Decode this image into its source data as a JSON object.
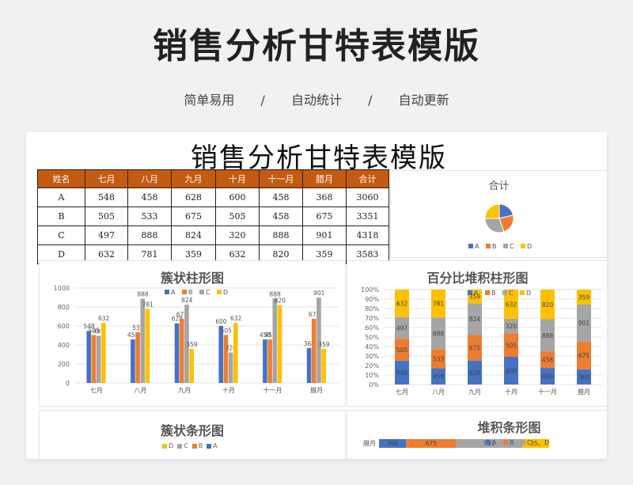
{
  "header": {
    "title": "销售分析甘特表模版",
    "tags": [
      "简单易用",
      "自动统计",
      "自动更新"
    ],
    "separator": "/"
  },
  "sheet": {
    "title": "销售分析甘特表模版",
    "columns": [
      "姓名",
      "七月",
      "八月",
      "九月",
      "十月",
      "十一月",
      "腊月",
      "合计"
    ],
    "rows": [
      [
        "A",
        "548",
        "458",
        "628",
        "600",
        "458",
        "368",
        "3060"
      ],
      [
        "B",
        "505",
        "533",
        "675",
        "505",
        "458",
        "675",
        "3351"
      ],
      [
        "C",
        "497",
        "888",
        "824",
        "320",
        "888",
        "901",
        "4318"
      ],
      [
        "D",
        "632",
        "781",
        "359",
        "632",
        "820",
        "359",
        "3583"
      ]
    ]
  },
  "colors": {
    "header_bg": "#c55a11",
    "A": "#4472c4",
    "B": "#ed7d31",
    "C": "#a5a5a5",
    "D": "#ffc000"
  },
  "chart_data": [
    {
      "type": "pie",
      "title": "合计",
      "categories": [
        "A",
        "B",
        "C",
        "D"
      ],
      "values": [
        3060,
        3351,
        4318,
        3583
      ],
      "legend": "bottom"
    },
    {
      "type": "bar",
      "title": "簇状柱形图",
      "categories": [
        "七月",
        "八月",
        "九月",
        "十月",
        "十一月",
        "腊月"
      ],
      "series": [
        {
          "name": "A",
          "values": [
            548,
            458,
            628,
            600,
            458,
            368
          ]
        },
        {
          "name": "B",
          "values": [
            505,
            533,
            675,
            505,
            458,
            675
          ]
        },
        {
          "name": "C",
          "values": [
            497,
            888,
            824,
            320,
            888,
            901
          ]
        },
        {
          "name": "D",
          "values": [
            632,
            781,
            359,
            632,
            820,
            359
          ]
        }
      ],
      "ylim": [
        0,
        1000
      ],
      "yticks": [
        "0",
        "200",
        "400",
        "600",
        "800",
        "1000"
      ],
      "legend": "top",
      "grid": true
    },
    {
      "type": "bar",
      "title": "百分比堆积柱形图",
      "stacked": "percent",
      "categories": [
        "七月",
        "八月",
        "九月",
        "十月",
        "十一月",
        "腊月"
      ],
      "series": [
        {
          "name": "A",
          "values": [
            548,
            458,
            628,
            600,
            458,
            368
          ]
        },
        {
          "name": "B",
          "values": [
            505,
            533,
            675,
            505,
            458,
            675
          ]
        },
        {
          "name": "C",
          "values": [
            497,
            888,
            824,
            320,
            888,
            901
          ]
        },
        {
          "name": "D",
          "values": [
            632,
            781,
            359,
            632,
            820,
            359
          ]
        }
      ],
      "yticks": [
        "0%",
        "10%",
        "20%",
        "30%",
        "40%",
        "50%",
        "60%",
        "70%",
        "80%",
        "90%",
        "100%"
      ],
      "legend": "top",
      "grid": true
    },
    {
      "type": "bar",
      "title": "簇状条形图",
      "orientation": "horizontal",
      "legend": "top",
      "legend_order": [
        "D",
        "C",
        "B",
        "A"
      ]
    },
    {
      "type": "bar",
      "title": "堆积条形图",
      "orientation": "horizontal",
      "stacked": true,
      "categories": [
        "腊月"
      ],
      "series": [
        {
          "name": "A",
          "values": [
            368
          ]
        },
        {
          "name": "B",
          "values": [
            675
          ]
        },
        {
          "name": "C",
          "values": [
            901
          ]
        },
        {
          "name": "D",
          "values": [
            359
          ]
        }
      ],
      "legend": "top"
    }
  ]
}
